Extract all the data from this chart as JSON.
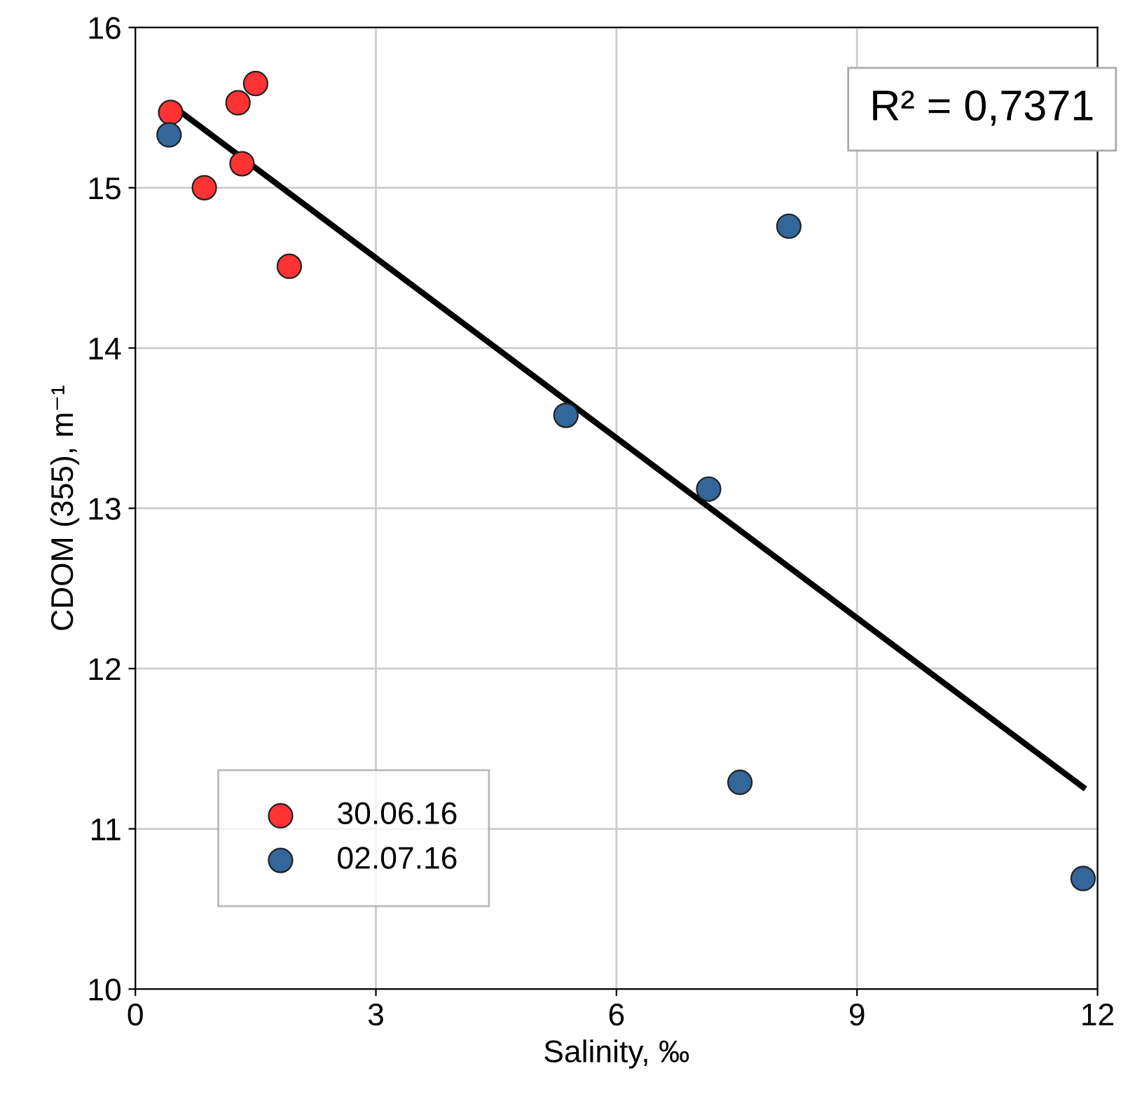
{
  "chart_data": {
    "type": "scatter",
    "xlabel": "Salinity, ‰",
    "ylabel": "CDOM (355), m⁻¹",
    "annotations": [
      "R² = 0,7371"
    ],
    "series": [
      {
        "name": "30.06.16",
        "color": "#ff3333",
        "x": [
          0.44,
          0.86,
          1.28,
          1.33,
          1.5,
          1.92
        ],
        "values": [
          15.47,
          15.0,
          15.53,
          15.15,
          15.65,
          14.51
        ]
      },
      {
        "name": "02.07.16",
        "color": "#336699",
        "x": [
          0.42,
          5.37,
          7.15,
          8.15,
          7.54,
          11.82
        ],
        "values": [
          15.33,
          13.58,
          13.12,
          14.76,
          11.29,
          10.69
        ]
      },
      {
        "type": "line",
        "marker": "none",
        "color": "#000000",
        "x": [
          0.44,
          11.82
        ],
        "values": [
          15.52,
          11.26
        ]
      }
    ],
    "xlim": [
      0,
      12
    ],
    "xticks": [
      0,
      3,
      6,
      9,
      12
    ],
    "ylim": [
      10,
      16
    ],
    "yticks": [
      10,
      11,
      12,
      13,
      14,
      15,
      16
    ],
    "grid": true,
    "legend": "bottom left",
    "marker": "circle"
  }
}
